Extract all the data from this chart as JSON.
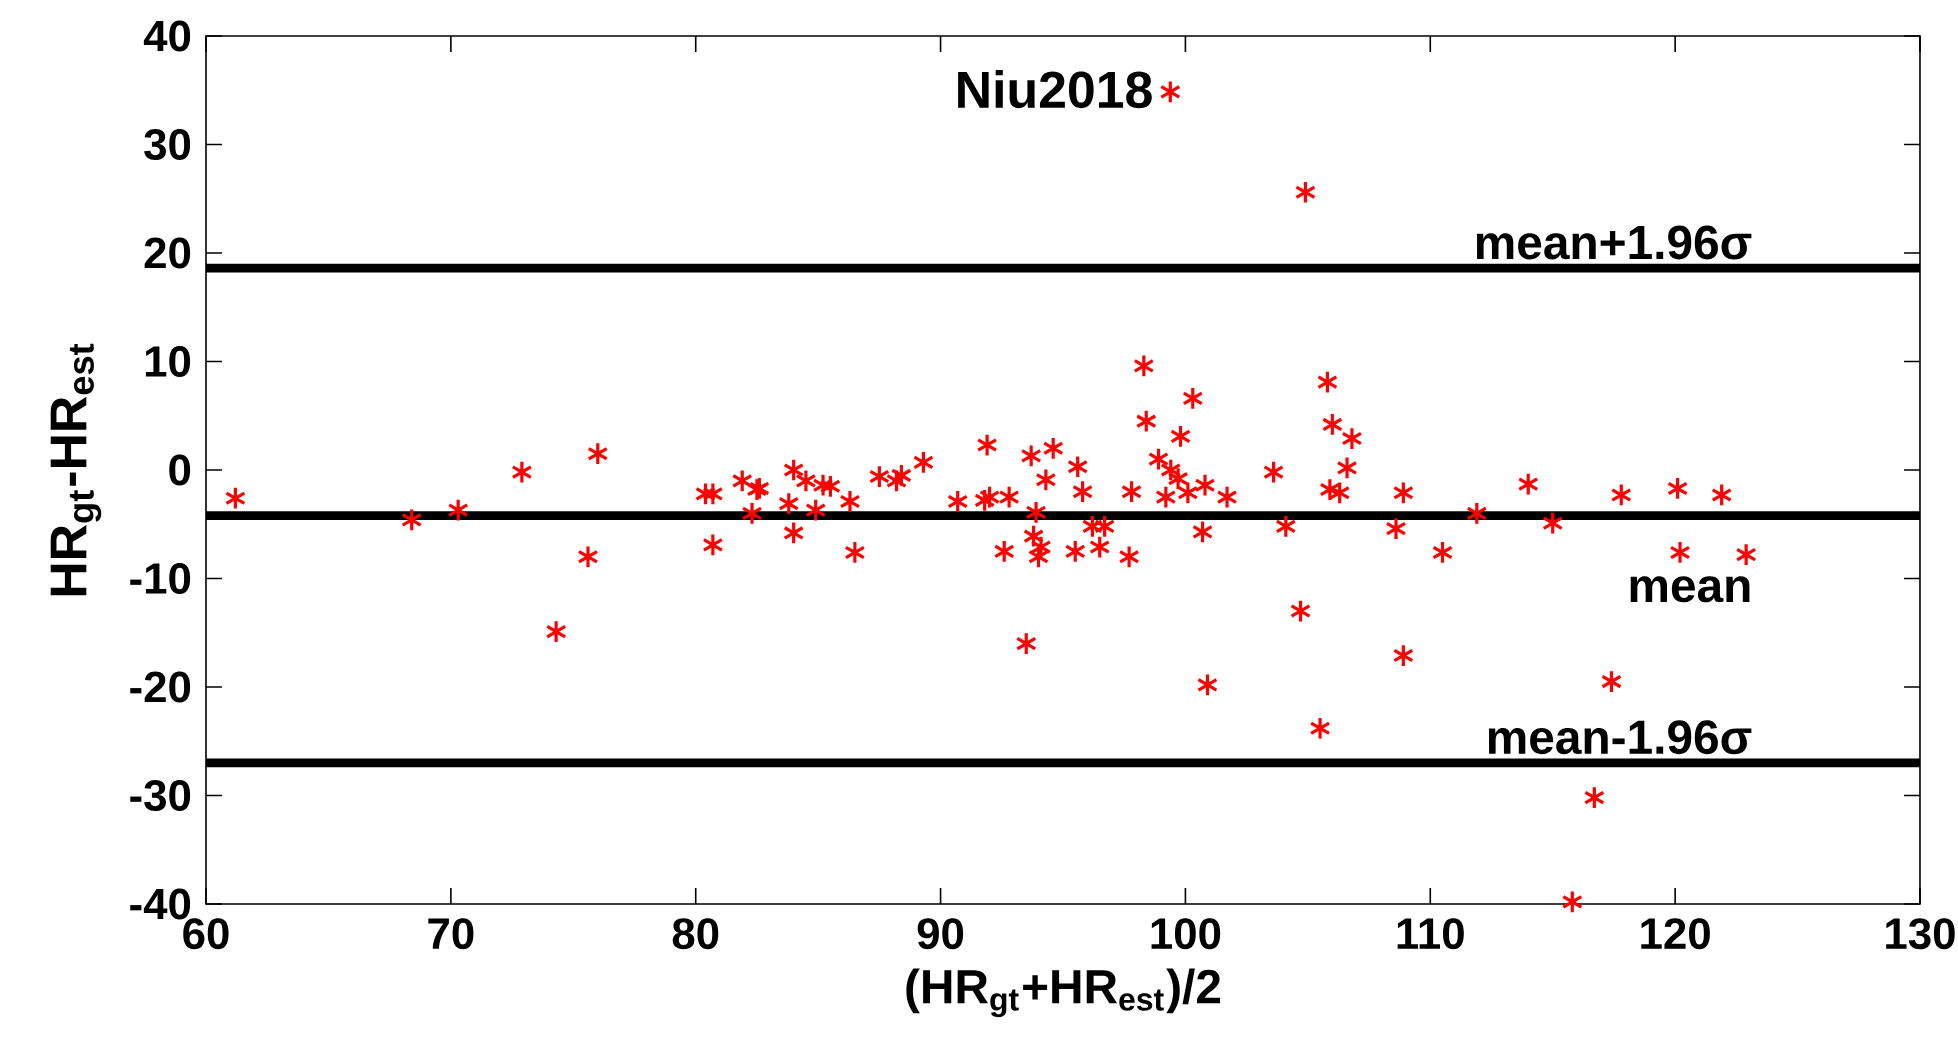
{
  "chart_data": {
    "type": "scatter",
    "xlabel": "(HR$_{gt}$+HR$_{est}$)/2",
    "ylabel": "HR$_{gt}$-HR$_{est}$",
    "xlim": [
      60,
      130
    ],
    "xticks": [
      60,
      70,
      80,
      90,
      100,
      110,
      120,
      130
    ],
    "ylim": [
      -40,
      40
    ],
    "yticks": [
      -40,
      -30,
      -20,
      -10,
      0,
      10,
      20,
      30,
      40
    ],
    "legend": "top",
    "marker": "cross",
    "grid": false,
    "series": [
      {
        "name": "Niu2018",
        "color": "#ff0000",
        "x": [
          61.2,
          68.4,
          70.3,
          72.9,
          76.0,
          75.6,
          74.3,
          80.4,
          80.7,
          80.7,
          81.9,
          82.5,
          82.3,
          84.0,
          83.8,
          84.0,
          82.6,
          84.5,
          85.2,
          85.5,
          84.9,
          86.3,
          86.5,
          87.5,
          88.2,
          88.4,
          89.3,
          90.7,
          91.8,
          92.0,
          91.9,
          92.8,
          92.6,
          93.5,
          93.7,
          94.6,
          94.3,
          93.9,
          93.8,
          94.1,
          94.0,
          95.5,
          95.6,
          95.8,
          96.2,
          96.7,
          96.5,
          97.7,
          97.8,
          98.3,
          98.4,
          98.9,
          99.8,
          99.4,
          99.7,
          99.2,
          100.1,
          100.3,
          100.8,
          101.7,
          100.7,
          100.9,
          103.6,
          104.1,
          104.7,
          105.5,
          105.8,
          106.0,
          106.8,
          106.6,
          105.9,
          106.3,
          104.9,
          108.6,
          108.9,
          108.9,
          110.5,
          111.9,
          114.0,
          115.0,
          117.8,
          117.4,
          120.1,
          120.2,
          121.9,
          122.9,
          116.7,
          115.8
        ],
        "values": [
          -2.6,
          -4.6,
          -3.7,
          -0.2,
          1.5,
          -8.0,
          -14.9,
          -2.2,
          -2.2,
          -6.9,
          -1.0,
          -1.8,
          -4.0,
          0.0,
          -3.1,
          -5.8,
          -1.7,
          -1.0,
          -1.4,
          -1.5,
          -3.7,
          -2.9,
          -7.6,
          -0.6,
          -1.0,
          -0.5,
          0.7,
          -2.9,
          -2.8,
          -2.5,
          2.3,
          -2.5,
          -7.5,
          -16.0,
          1.3,
          2.0,
          -0.9,
          -3.9,
          -6.1,
          -7.1,
          -8.0,
          -7.5,
          0.3,
          -2.0,
          -5.2,
          -5.2,
          -7.1,
          -8.0,
          -2.0,
          9.6,
          4.5,
          1.0,
          3.1,
          0.0,
          -0.8,
          -2.5,
          -2.1,
          6.6,
          -1.4,
          -2.5,
          -5.7,
          -19.8,
          -0.2,
          -5.2,
          -13.0,
          -23.8,
          8.1,
          4.2,
          2.9,
          0.2,
          -1.8,
          -2.1,
          25.6,
          -5.4,
          -2.1,
          -17.1,
          -7.6,
          -4.0,
          -1.3,
          -4.9,
          -2.3,
          -19.5,
          -1.7,
          -7.6,
          -2.3,
          -7.8,
          -30.2,
          -39.8
        ]
      }
    ],
    "ref_lines": [
      {
        "axis": "y",
        "value": 18.6,
        "label": "mean+1.96σ",
        "color": "#000000"
      },
      {
        "axis": "y",
        "value": -4.2,
        "label": "mean",
        "color": "#000000"
      },
      {
        "axis": "y",
        "value": -27.0,
        "label": "mean-1.96σ",
        "color": "#000000"
      }
    ]
  }
}
